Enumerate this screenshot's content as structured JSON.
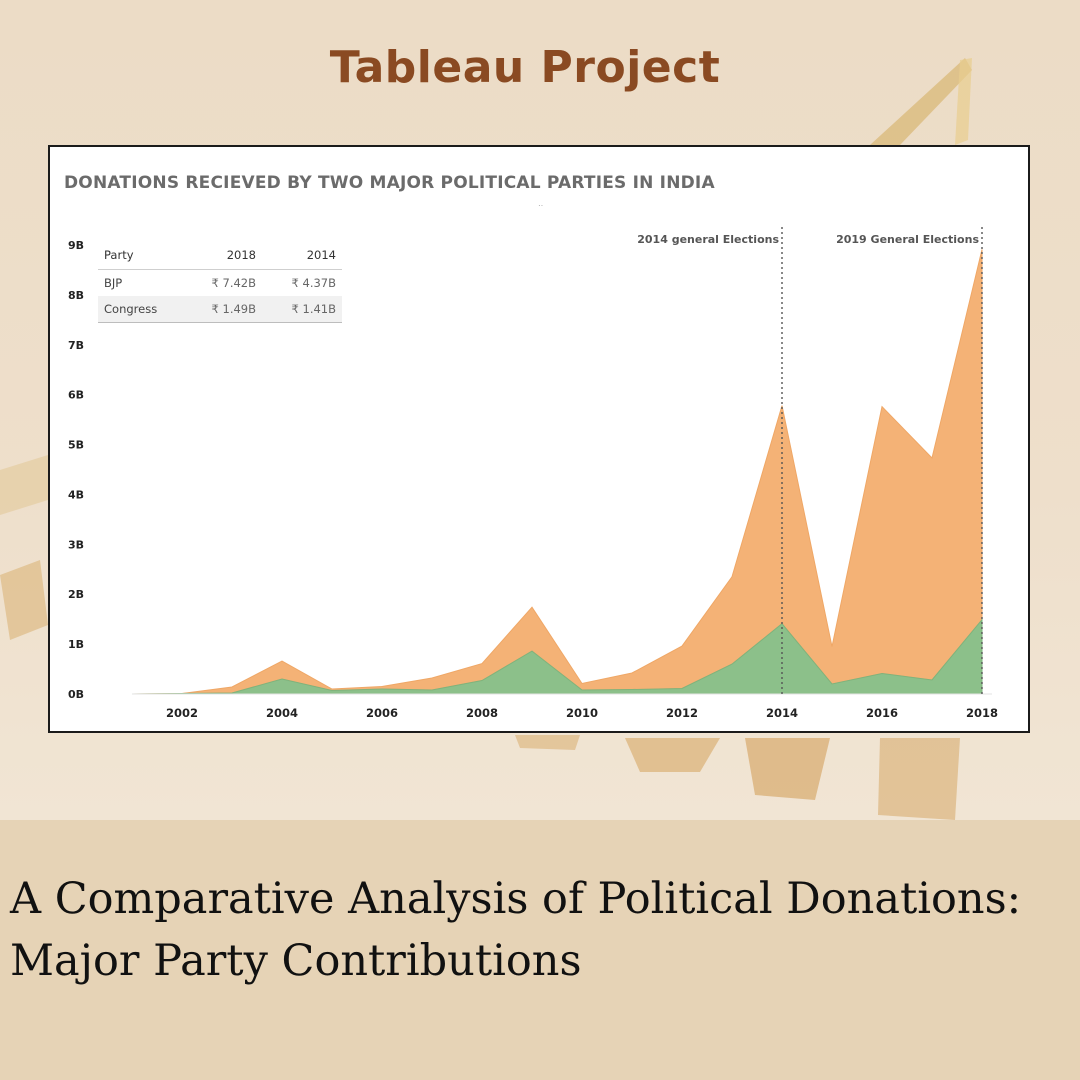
{
  "header": {
    "title": "Tableau Project"
  },
  "footer": {
    "subtitle": "A Comparative Analysis of Political Donations: Major Party Contributions"
  },
  "colors": {
    "bjp_area": "#f4b276",
    "congress_area": "#8cc08a",
    "title_brown": "#8a4a22",
    "background": "#ead9c0"
  },
  "chart_data": {
    "type": "area",
    "title": "DONATIONS RECIEVED BY TWO MAJOR POLITICAL PARTIES IN INDIA",
    "xlabel": "",
    "ylabel": "",
    "x": [
      2001,
      2002,
      2003,
      2004,
      2005,
      2006,
      2007,
      2008,
      2009,
      2010,
      2011,
      2012,
      2013,
      2014,
      2015,
      2016,
      2017,
      2018
    ],
    "x_ticks": [
      "2002",
      "2004",
      "2006",
      "2008",
      "2010",
      "2012",
      "2014",
      "2016",
      "2018"
    ],
    "y_ticks": [
      "0B",
      "1B",
      "2B",
      "3B",
      "4B",
      "5B",
      "6B",
      "7B",
      "8B",
      "9B"
    ],
    "ylim": [
      0,
      9
    ],
    "stacked": true,
    "series": [
      {
        "name": "Congress",
        "values": [
          0.0,
          0.01,
          0.02,
          0.3,
          0.07,
          0.1,
          0.08,
          0.27,
          0.86,
          0.08,
          0.09,
          0.11,
          0.6,
          1.41,
          0.2,
          0.41,
          0.28,
          1.49
        ]
      },
      {
        "name": "BJP",
        "values": [
          0.0,
          0.0,
          0.12,
          0.36,
          0.03,
          0.05,
          0.24,
          0.34,
          0.88,
          0.13,
          0.33,
          0.85,
          1.75,
          4.37,
          0.75,
          5.35,
          4.45,
          7.42
        ]
      }
    ],
    "annotations": [
      {
        "x": 2014,
        "text": "2014 general Elections"
      },
      {
        "x": 2018,
        "text": "2019 General Elections"
      }
    ],
    "legend_table": {
      "headers": [
        "Party",
        "2018",
        "2014"
      ],
      "rows": [
        {
          "party": "BJP",
          "v2018": "₹ 7.42B",
          "v2014": "₹ 4.37B"
        },
        {
          "party": "Congress",
          "v2018": "₹ 1.49B",
          "v2014": "₹ 1.41B"
        }
      ]
    },
    "grid": false
  }
}
